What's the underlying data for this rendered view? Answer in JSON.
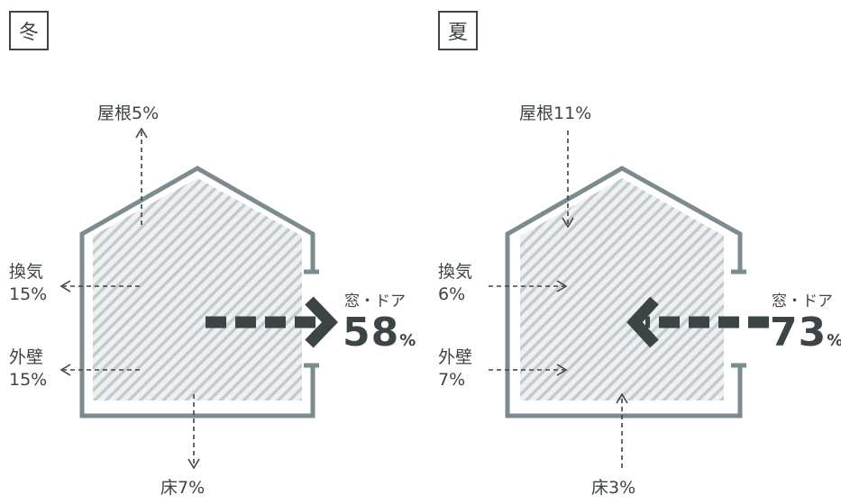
{
  "panels": {
    "winter": {
      "season": "冬",
      "roof": "屋根5%",
      "vent_label": "換気",
      "vent_value": "15%",
      "wall_label": "外壁",
      "wall_value": "15%",
      "floor": "床7%",
      "door_label": "窓・ドア",
      "door_value": "58",
      "door_unit": "%",
      "flow": "outward"
    },
    "summer": {
      "season": "夏",
      "roof": "屋根11%",
      "vent_label": "換気",
      "vent_value": "6%",
      "wall_label": "外壁",
      "wall_value": "7%",
      "floor": "床3%",
      "door_label": "窓・ドア",
      "door_value": "73",
      "door_unit": "%",
      "flow": "inward"
    }
  },
  "colors": {
    "house_outline": "#7c8b8f",
    "hatch": "#c3cbcd",
    "hatch_background": "#eef1f1",
    "arrows": "#3d4446"
  }
}
